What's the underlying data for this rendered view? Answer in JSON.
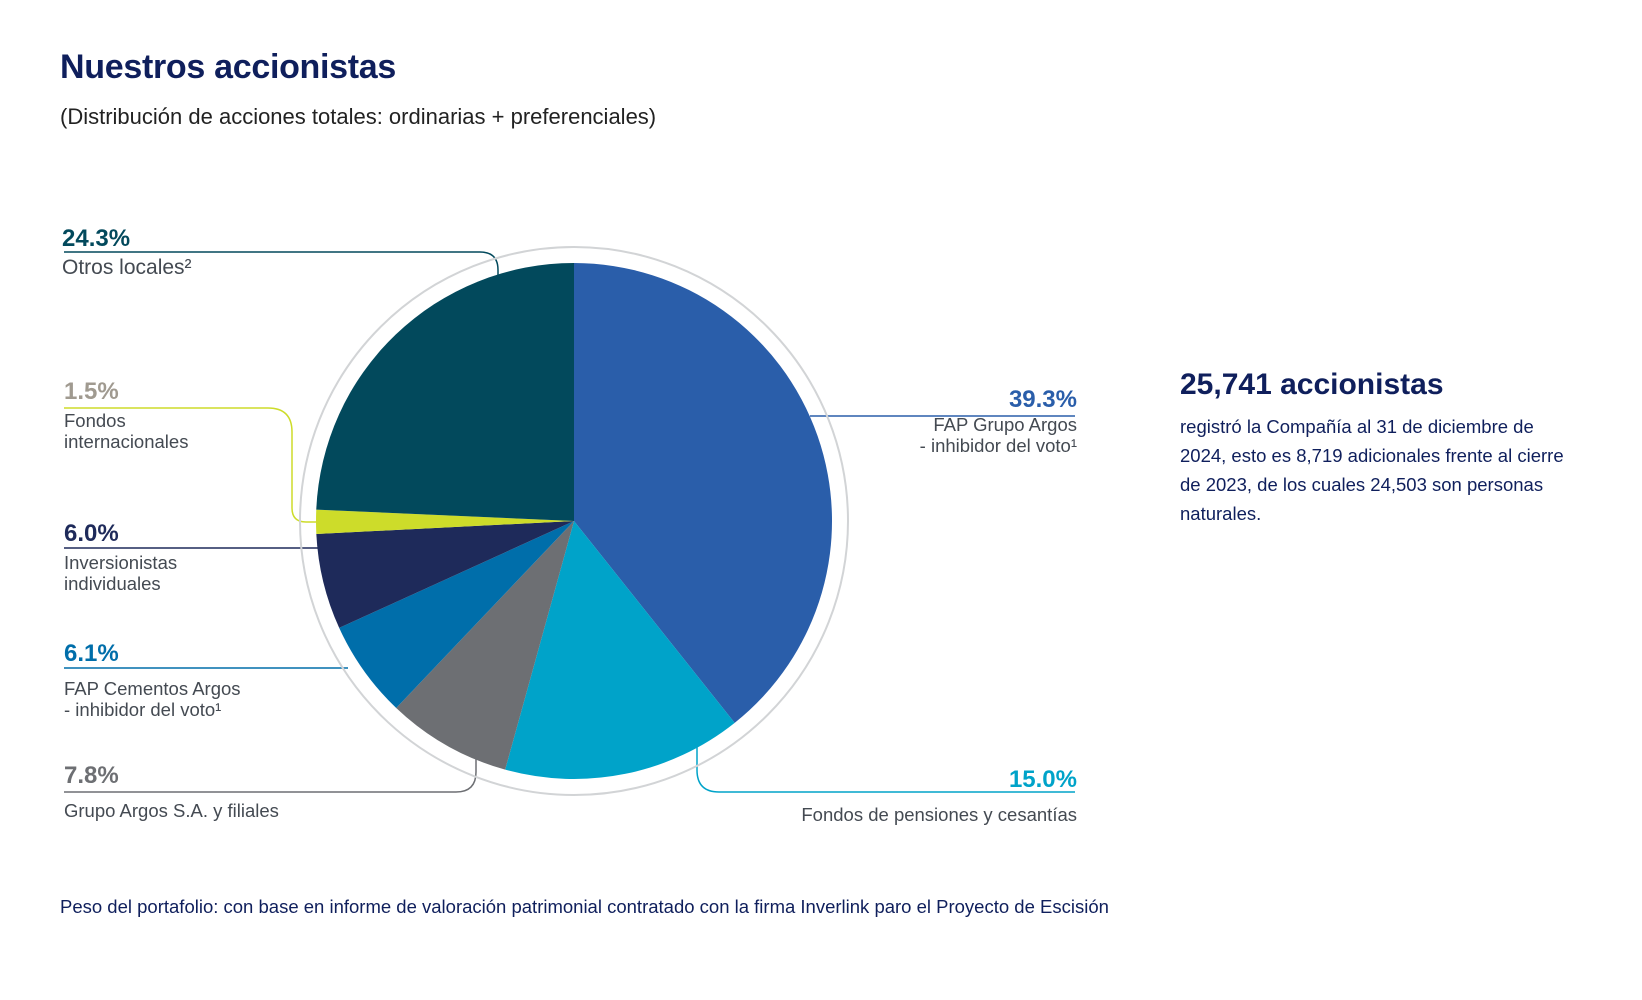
{
  "title": "Nuestros accionistas",
  "subtitle": "(Distribución de acciones totales: ordinarias + preferenciales)",
  "chart_data": {
    "type": "pie",
    "start_angle_deg": 0,
    "direction": "clockwise",
    "slices": [
      {
        "label": "FAP Grupo Argos\n- inhibidor del voto¹",
        "value": 39.3,
        "value_label": "39.3%",
        "color": "#2a5eaa"
      },
      {
        "label": "Fondos de pensiones y cesantías",
        "value": 15.0,
        "value_label": "15.0%",
        "color": "#00a3c9"
      },
      {
        "label": "Grupo Argos S.A. y filiales",
        "value": 7.8,
        "value_label": "7.8%",
        "color": "#6d6f73"
      },
      {
        "label": "FAP Cementos Argos\n- inhibidor del voto¹",
        "value": 6.1,
        "value_label": "6.1%",
        "color": "#006eaa"
      },
      {
        "label": "Inversionistas\nindividuales",
        "value": 6.0,
        "value_label": "6.0%",
        "color": "#1e2a5a"
      },
      {
        "label": "Fondos\ninternacionales",
        "value": 1.5,
        "value_label": "1.5%",
        "color": "#cddc2a"
      },
      {
        "label": "Otros locales²",
        "value": 24.3,
        "value_label": "24.3%",
        "color": "#02495c"
      }
    ],
    "value_label_colors": [
      "#2a5eaa",
      "#00a3c9",
      "#6d6f73",
      "#006eaa",
      "#1e2a5a",
      "#a09a90",
      "#02495c"
    ]
  },
  "stat": {
    "headline": "25,741 accionistas",
    "text": "registró la Compañía al 31 de diciembre de 2024, esto es 8,719 adicionales frente al cierre de 2023, de los cuales 24,503 son personas naturales."
  },
  "footnote": "Peso del portafolio: con base en informe de valoración patrimonial contratado con la firma Inverlink paro el Proyecto de Escisión"
}
